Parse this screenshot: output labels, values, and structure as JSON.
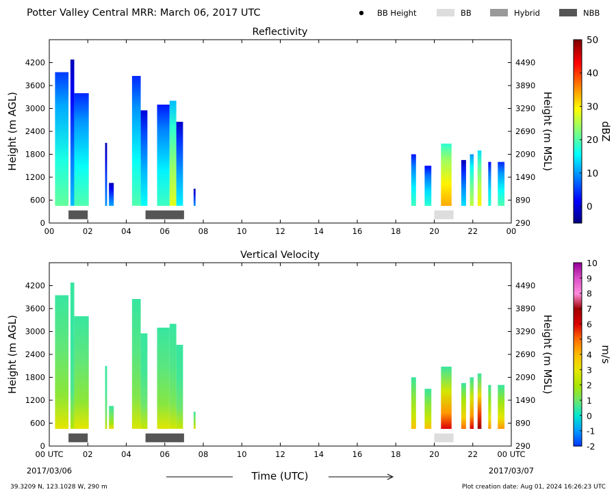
{
  "header": {
    "title": "Potter Valley Central MRR:  March 06, 2017 UTC",
    "legend": [
      {
        "label": "BB Height",
        "kind": "dot",
        "color": "#000000"
      },
      {
        "label": "BB",
        "kind": "box",
        "color": "#dddddd"
      },
      {
        "label": "Hybrid",
        "kind": "box",
        "color": "#999999"
      },
      {
        "label": "NBB",
        "kind": "box",
        "color": "#555555"
      }
    ]
  },
  "footer": {
    "location": "39.3209 N, 123.1028 W, 290 m",
    "created": "Plot creation date: Aug 01, 2024 16:26:23 UTC",
    "start_date": "2017/03/06",
    "end_date": "2017/03/07",
    "xlabel": "Time (UTC)"
  },
  "chart_data": [
    {
      "type": "heatmap",
      "title": "Reflectivity",
      "ylabel": "Height (m AGL)",
      "ylabel_right": "Height (m MSL)",
      "xlim": [
        0,
        24
      ],
      "ylim": [
        0,
        4800
      ],
      "x_ticks": [
        "00",
        "02",
        "04",
        "06",
        "08",
        "10",
        "12",
        "14",
        "16",
        "18",
        "20",
        "22",
        "00"
      ],
      "y_ticks": [
        0,
        600,
        1200,
        1800,
        2400,
        3000,
        3600,
        4200
      ],
      "y_ticks_right": [
        290,
        890,
        1490,
        2090,
        2690,
        3290,
        3890,
        4490
      ],
      "colorbar": {
        "label": "dBZ",
        "min": -5,
        "max": 50,
        "ticks": [
          0,
          10,
          20,
          30,
          40,
          50
        ]
      },
      "echo_columns": [
        {
          "t_start": 0.3,
          "t_end": 1.0,
          "top": 3950,
          "value": 15
        },
        {
          "t_start": 1.1,
          "t_end": 1.3,
          "top": 4280,
          "value": 6
        },
        {
          "t_start": 1.3,
          "t_end": 2.05,
          "top": 3400,
          "value": 14
        },
        {
          "t_start": 2.9,
          "t_end": 3.0,
          "top": 2100,
          "value": 4
        },
        {
          "t_start": 3.1,
          "t_end": 3.35,
          "top": 1050,
          "value": 5
        },
        {
          "t_start": 4.3,
          "t_end": 4.75,
          "top": 3850,
          "value": 14
        },
        {
          "t_start": 4.75,
          "t_end": 5.1,
          "top": 2950,
          "value": 10
        },
        {
          "t_start": 5.6,
          "t_end": 6.25,
          "top": 3100,
          "value": 13
        },
        {
          "t_start": 6.25,
          "t_end": 6.6,
          "top": 3200,
          "value": 22
        },
        {
          "t_start": 6.6,
          "t_end": 6.95,
          "top": 2650,
          "value": 9
        },
        {
          "t_start": 7.5,
          "t_end": 7.6,
          "top": 900,
          "value": 4
        },
        {
          "t_start": 18.8,
          "t_end": 19.05,
          "top": 1800,
          "value": 13
        },
        {
          "t_start": 19.5,
          "t_end": 19.85,
          "top": 1500,
          "value": 12
        },
        {
          "t_start": 20.35,
          "t_end": 20.9,
          "top": 2080,
          "value": 28
        },
        {
          "t_start": 21.4,
          "t_end": 21.65,
          "top": 1650,
          "value": 8
        },
        {
          "t_start": 21.85,
          "t_end": 22.05,
          "top": 1800,
          "value": 20
        },
        {
          "t_start": 22.25,
          "t_end": 22.45,
          "top": 1900,
          "value": 24
        },
        {
          "t_start": 22.8,
          "t_end": 22.95,
          "top": 1600,
          "value": 12
        },
        {
          "t_start": 23.3,
          "t_end": 23.65,
          "top": 1600,
          "value": 14
        }
      ],
      "bright_band": [
        {
          "t_start": 1.0,
          "t_end": 2.0,
          "type": "NBB"
        },
        {
          "t_start": 5.0,
          "t_end": 7.0,
          "type": "NBB"
        },
        {
          "t_start": 20.0,
          "t_end": 21.0,
          "type": "BB"
        }
      ]
    },
    {
      "type": "heatmap",
      "title": "Vertical Velocity",
      "ylabel": "Height (m AGL)",
      "ylabel_right": "Height (m MSL)",
      "xlim": [
        0,
        24
      ],
      "ylim": [
        0,
        4800
      ],
      "x_ticks": [
        "00 UTC",
        "02",
        "04",
        "06",
        "08",
        "10",
        "12",
        "14",
        "16",
        "18",
        "20",
        "22",
        "00 UTC"
      ],
      "y_ticks": [
        0,
        600,
        1200,
        1800,
        2400,
        3000,
        3600,
        4200
      ],
      "y_ticks_right": [
        290,
        890,
        1490,
        2090,
        2690,
        3290,
        3890,
        4490
      ],
      "colorbar": {
        "label": "m/s",
        "min": -2,
        "max": 10,
        "ticks": [
          -2,
          -1,
          0,
          1,
          2,
          3,
          4,
          5,
          6,
          7,
          8,
          9,
          10
        ]
      },
      "echo_columns": [
        {
          "t_start": 0.3,
          "t_end": 1.0,
          "top": 3950,
          "value": 1.5
        },
        {
          "t_start": 1.1,
          "t_end": 1.3,
          "top": 4280,
          "value": 0.7
        },
        {
          "t_start": 1.3,
          "t_end": 2.05,
          "top": 3400,
          "value": 1.5
        },
        {
          "t_start": 2.9,
          "t_end": 3.0,
          "top": 2100,
          "value": 1.0
        },
        {
          "t_start": 3.1,
          "t_end": 3.35,
          "top": 1050,
          "value": 1.8
        },
        {
          "t_start": 4.3,
          "t_end": 4.75,
          "top": 3850,
          "value": 1.3
        },
        {
          "t_start": 4.75,
          "t_end": 5.1,
          "top": 2950,
          "value": 1.0
        },
        {
          "t_start": 5.6,
          "t_end": 6.25,
          "top": 3100,
          "value": 1.4
        },
        {
          "t_start": 6.25,
          "t_end": 6.6,
          "top": 3200,
          "value": 1.2
        },
        {
          "t_start": 6.6,
          "t_end": 6.95,
          "top": 2650,
          "value": 1.0
        },
        {
          "t_start": 7.5,
          "t_end": 7.6,
          "top": 900,
          "value": 1.8
        },
        {
          "t_start": 18.8,
          "t_end": 19.05,
          "top": 1800,
          "value": 2.5
        },
        {
          "t_start": 19.5,
          "t_end": 19.85,
          "top": 1500,
          "value": 2.5
        },
        {
          "t_start": 20.35,
          "t_end": 20.9,
          "top": 2080,
          "value": 4.5
        },
        {
          "t_start": 21.4,
          "t_end": 21.65,
          "top": 1650,
          "value": 3.5
        },
        {
          "t_start": 21.85,
          "t_end": 22.05,
          "top": 1800,
          "value": 4.5
        },
        {
          "t_start": 22.25,
          "t_end": 22.45,
          "top": 1900,
          "value": 5.5
        },
        {
          "t_start": 22.8,
          "t_end": 22.95,
          "top": 1600,
          "value": 3.0
        },
        {
          "t_start": 23.3,
          "t_end": 23.65,
          "top": 1600,
          "value": 3.0
        }
      ],
      "bright_band": [
        {
          "t_start": 1.0,
          "t_end": 2.0,
          "type": "NBB"
        },
        {
          "t_start": 5.0,
          "t_end": 7.0,
          "type": "NBB"
        },
        {
          "t_start": 20.0,
          "t_end": 21.0,
          "type": "BB"
        }
      ]
    }
  ]
}
